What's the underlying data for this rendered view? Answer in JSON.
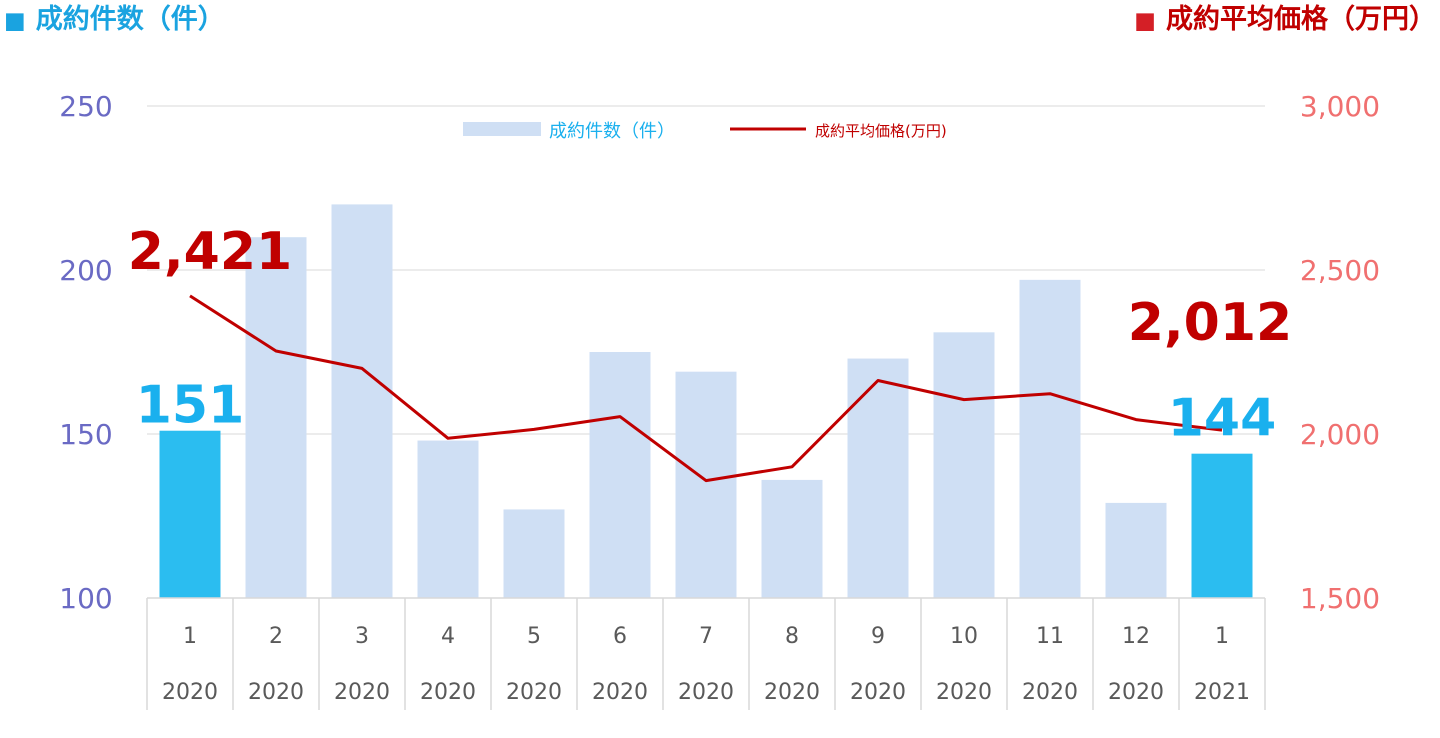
{
  "titles": {
    "left": "成約件数（件）",
    "right": "成約平均価格（万円）",
    "left_marker": "■",
    "right_marker": "■"
  },
  "chart_data": {
    "type": "bar",
    "categories": [
      "1",
      "2",
      "3",
      "4",
      "5",
      "6",
      "7",
      "8",
      "9",
      "10",
      "11",
      "12",
      "1"
    ],
    "years": [
      "2020",
      "2020",
      "2020",
      "2020",
      "2020",
      "2020",
      "2020",
      "2020",
      "2020",
      "2020",
      "2020",
      "2020",
      "2021"
    ],
    "series": [
      {
        "name": "成約件数（件）",
        "type": "bar",
        "axis": "left",
        "values": [
          151,
          210,
          220,
          148,
          127,
          175,
          169,
          136,
          173,
          181,
          197,
          129,
          144
        ],
        "highlight_indices": [
          0,
          12
        ]
      },
      {
        "name": "成約平均価格(万円)",
        "type": "line",
        "axis": "right",
        "values": [
          2421,
          2253,
          2200,
          1987,
          2014,
          2053,
          1858,
          1900,
          2163,
          2105,
          2123,
          2044,
          2012
        ]
      }
    ],
    "y_left": {
      "min": 100,
      "max": 250,
      "ticks": [
        "100",
        "150",
        "200",
        "250"
      ]
    },
    "y_right": {
      "min": 1500,
      "max": 3000,
      "ticks": [
        "1,500",
        "2,000",
        "2,500",
        "3,000"
      ]
    },
    "annotations": {
      "bar_first": "151",
      "bar_last": "144",
      "line_first": "2,421",
      "line_last": "2,012"
    },
    "legend": {
      "position": "top-center"
    },
    "grid": true,
    "colors": {
      "bar": "#cfdff4",
      "bar_highlight": "#2bbdf0",
      "line": "#c00000",
      "left_axis_text": "#6a6ac4",
      "right_axis_text": "#f07070",
      "bar_label": "#1ab0ee",
      "line_label": "#c00000",
      "grid": "#d9d9d9",
      "category_text": "#595959"
    }
  }
}
